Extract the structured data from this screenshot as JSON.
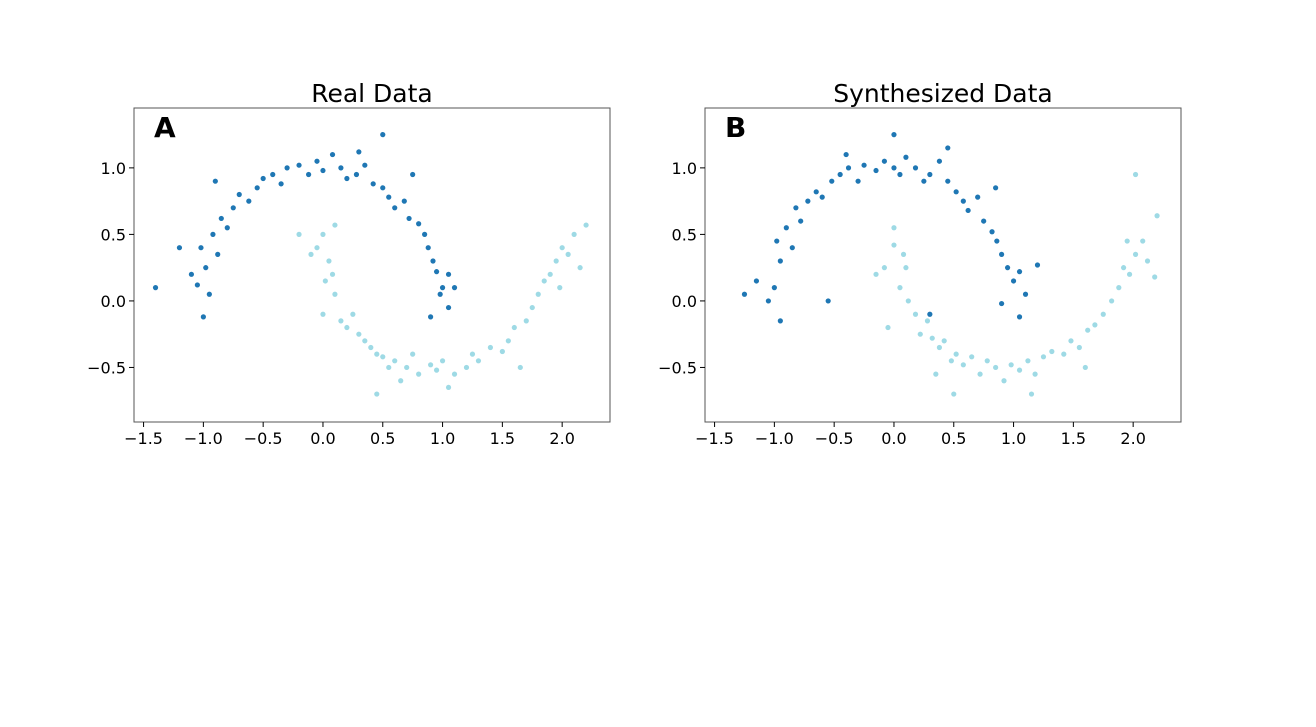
{
  "chart_data": [
    {
      "type": "scatter",
      "panel_label": "A",
      "title": "Real Data",
      "xlim": [
        -1.58,
        2.4
      ],
      "ylim": [
        -0.91,
        1.45
      ],
      "xticks": [
        "-1.5",
        "-1.0",
        "-0.5",
        "0.0",
        "0.5",
        "1.0",
        "1.5",
        "2.0"
      ],
      "yticks": [
        "-0.5",
        "0.0",
        "0.5",
        "1.0"
      ],
      "grid": false,
      "series": [
        {
          "color": "#1f77b4",
          "points": [
            [
              -1.05,
              0.12
            ],
            [
              -0.98,
              0.25
            ],
            [
              -1.02,
              0.4
            ],
            [
              -0.92,
              0.5
            ],
            [
              -0.95,
              0.05
            ],
            [
              -1.1,
              0.2
            ],
            [
              -0.88,
              0.35
            ],
            [
              -0.85,
              0.62
            ],
            [
              -0.8,
              0.55
            ],
            [
              -0.75,
              0.7
            ],
            [
              -0.7,
              0.8
            ],
            [
              -0.62,
              0.75
            ],
            [
              -0.55,
              0.85
            ],
            [
              -0.5,
              0.92
            ],
            [
              -0.42,
              0.95
            ],
            [
              -0.35,
              0.88
            ],
            [
              -0.3,
              1.0
            ],
            [
              -0.2,
              1.02
            ],
            [
              -0.12,
              0.95
            ],
            [
              -0.05,
              1.05
            ],
            [
              0.0,
              0.98
            ],
            [
              0.08,
              1.1
            ],
            [
              0.15,
              1.0
            ],
            [
              0.2,
              0.92
            ],
            [
              0.28,
              0.95
            ],
            [
              0.35,
              1.02
            ],
            [
              0.42,
              0.88
            ],
            [
              0.5,
              0.85
            ],
            [
              0.55,
              0.78
            ],
            [
              0.6,
              0.7
            ],
            [
              0.68,
              0.75
            ],
            [
              0.72,
              0.62
            ],
            [
              0.8,
              0.58
            ],
            [
              0.85,
              0.5
            ],
            [
              0.88,
              0.4
            ],
            [
              0.92,
              0.3
            ],
            [
              0.95,
              0.22
            ],
            [
              1.0,
              0.1
            ],
            [
              1.05,
              0.2
            ],
            [
              0.98,
              0.05
            ],
            [
              1.1,
              0.1
            ],
            [
              -1.4,
              0.1
            ],
            [
              0.5,
              1.25
            ],
            [
              -1.2,
              0.4
            ],
            [
              0.75,
              0.95
            ],
            [
              -1.0,
              -0.12
            ],
            [
              0.9,
              -0.12
            ],
            [
              -0.9,
              0.9
            ],
            [
              0.3,
              1.12
            ],
            [
              1.05,
              -0.05
            ]
          ]
        },
        {
          "color": "#9edae5",
          "points": [
            [
              0.0,
              0.5
            ],
            [
              0.05,
              0.3
            ],
            [
              -0.05,
              0.4
            ],
            [
              0.02,
              0.15
            ],
            [
              0.08,
              0.2
            ],
            [
              -0.1,
              0.35
            ],
            [
              0.1,
              0.05
            ],
            [
              0.0,
              -0.1
            ],
            [
              0.15,
              -0.15
            ],
            [
              0.2,
              -0.2
            ],
            [
              0.25,
              -0.1
            ],
            [
              0.3,
              -0.25
            ],
            [
              0.35,
              -0.3
            ],
            [
              0.4,
              -0.35
            ],
            [
              0.45,
              -0.4
            ],
            [
              0.5,
              -0.42
            ],
            [
              0.55,
              -0.5
            ],
            [
              0.6,
              -0.45
            ],
            [
              0.7,
              -0.5
            ],
            [
              0.75,
              -0.4
            ],
            [
              0.8,
              -0.55
            ],
            [
              0.9,
              -0.48
            ],
            [
              0.95,
              -0.52
            ],
            [
              1.0,
              -0.45
            ],
            [
              1.1,
              -0.55
            ],
            [
              1.2,
              -0.5
            ],
            [
              1.25,
              -0.4
            ],
            [
              1.3,
              -0.45
            ],
            [
              1.4,
              -0.35
            ],
            [
              1.5,
              -0.38
            ],
            [
              1.55,
              -0.3
            ],
            [
              1.6,
              -0.2
            ],
            [
              1.7,
              -0.15
            ],
            [
              1.75,
              -0.05
            ],
            [
              1.8,
              0.05
            ],
            [
              1.85,
              0.15
            ],
            [
              1.9,
              0.2
            ],
            [
              1.95,
              0.3
            ],
            [
              2.0,
              0.4
            ],
            [
              2.05,
              0.35
            ],
            [
              2.1,
              0.5
            ],
            [
              2.15,
              0.25
            ],
            [
              1.98,
              0.1
            ],
            [
              0.45,
              -0.7
            ],
            [
              1.65,
              -0.5
            ],
            [
              -0.2,
              0.5
            ],
            [
              2.2,
              0.57
            ],
            [
              0.1,
              0.57
            ],
            [
              1.05,
              -0.65
            ],
            [
              0.65,
              -0.6
            ]
          ]
        }
      ]
    },
    {
      "type": "scatter",
      "panel_label": "B",
      "title": "Synthesized Data",
      "xlim": [
        -1.58,
        2.4
      ],
      "ylim": [
        -0.91,
        1.45
      ],
      "xticks": [
        "-1.5",
        "-1.0",
        "-0.5",
        "0.0",
        "0.5",
        "1.0",
        "1.5",
        "2.0"
      ],
      "yticks": [
        "-0.5",
        "0.0",
        "0.5",
        "1.0"
      ],
      "grid": false,
      "series": [
        {
          "color": "#1f77b4",
          "points": [
            [
              -1.0,
              0.1
            ],
            [
              -0.95,
              0.3
            ],
            [
              -0.98,
              0.45
            ],
            [
              -0.9,
              0.55
            ],
            [
              -1.05,
              0.0
            ],
            [
              -1.15,
              0.15
            ],
            [
              -0.85,
              0.4
            ],
            [
              -0.82,
              0.7
            ],
            [
              -0.78,
              0.6
            ],
            [
              -0.72,
              0.75
            ],
            [
              -0.65,
              0.82
            ],
            [
              -0.6,
              0.78
            ],
            [
              -0.52,
              0.9
            ],
            [
              -0.45,
              0.95
            ],
            [
              -0.38,
              1.0
            ],
            [
              -0.3,
              0.9
            ],
            [
              -0.25,
              1.02
            ],
            [
              -0.15,
              0.98
            ],
            [
              -0.08,
              1.05
            ],
            [
              0.0,
              1.0
            ],
            [
              0.05,
              0.95
            ],
            [
              0.1,
              1.08
            ],
            [
              0.18,
              1.0
            ],
            [
              0.25,
              0.9
            ],
            [
              0.3,
              0.95
            ],
            [
              0.38,
              1.05
            ],
            [
              0.45,
              0.9
            ],
            [
              0.52,
              0.82
            ],
            [
              0.58,
              0.75
            ],
            [
              0.62,
              0.68
            ],
            [
              0.7,
              0.78
            ],
            [
              0.75,
              0.6
            ],
            [
              0.82,
              0.52
            ],
            [
              0.86,
              0.45
            ],
            [
              0.9,
              0.35
            ],
            [
              0.95,
              0.25
            ],
            [
              1.0,
              0.15
            ],
            [
              1.05,
              0.22
            ],
            [
              0.9,
              -0.02
            ],
            [
              1.1,
              0.05
            ],
            [
              -1.25,
              0.05
            ],
            [
              0.45,
              1.15
            ],
            [
              0.0,
              1.25
            ],
            [
              -0.55,
              0.0
            ],
            [
              1.2,
              0.27
            ],
            [
              -0.95,
              -0.15
            ],
            [
              1.05,
              -0.12
            ],
            [
              -0.4,
              1.1
            ],
            [
              0.85,
              0.85
            ],
            [
              0.3,
              -0.1
            ]
          ]
        },
        {
          "color": "#9edae5",
          "points": [
            [
              0.0,
              0.55
            ],
            [
              0.08,
              0.35
            ],
            [
              -0.08,
              0.25
            ],
            [
              0.05,
              0.1
            ],
            [
              0.1,
              0.25
            ],
            [
              -0.15,
              0.2
            ],
            [
              0.12,
              0.0
            ],
            [
              -0.05,
              -0.2
            ],
            [
              0.18,
              -0.1
            ],
            [
              0.22,
              -0.25
            ],
            [
              0.28,
              -0.15
            ],
            [
              0.32,
              -0.28
            ],
            [
              0.38,
              -0.35
            ],
            [
              0.42,
              -0.3
            ],
            [
              0.48,
              -0.45
            ],
            [
              0.52,
              -0.4
            ],
            [
              0.58,
              -0.48
            ],
            [
              0.65,
              -0.42
            ],
            [
              0.72,
              -0.55
            ],
            [
              0.78,
              -0.45
            ],
            [
              0.85,
              -0.5
            ],
            [
              0.92,
              -0.6
            ],
            [
              0.98,
              -0.48
            ],
            [
              1.05,
              -0.52
            ],
            [
              1.12,
              -0.45
            ],
            [
              1.18,
              -0.55
            ],
            [
              1.25,
              -0.42
            ],
            [
              1.32,
              -0.38
            ],
            [
              1.42,
              -0.4
            ],
            [
              1.48,
              -0.3
            ],
            [
              1.55,
              -0.35
            ],
            [
              1.62,
              -0.22
            ],
            [
              1.68,
              -0.18
            ],
            [
              1.75,
              -0.1
            ],
            [
              1.82,
              0.0
            ],
            [
              1.88,
              0.1
            ],
            [
              1.92,
              0.25
            ],
            [
              1.97,
              0.2
            ],
            [
              2.02,
              0.35
            ],
            [
              2.08,
              0.45
            ],
            [
              2.12,
              0.3
            ],
            [
              2.18,
              0.18
            ],
            [
              1.95,
              0.45
            ],
            [
              0.5,
              -0.7
            ],
            [
              1.6,
              -0.5
            ],
            [
              2.02,
              0.95
            ],
            [
              2.2,
              0.64
            ],
            [
              0.0,
              0.42
            ],
            [
              1.15,
              -0.7
            ],
            [
              0.35,
              -0.55
            ]
          ]
        }
      ]
    }
  ]
}
